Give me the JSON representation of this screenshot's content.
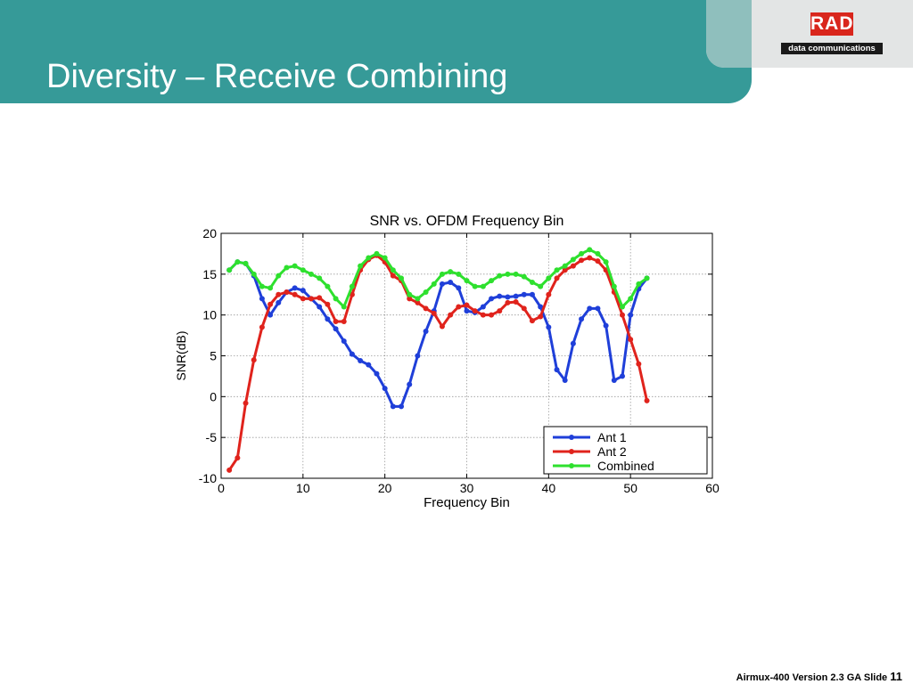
{
  "slide": {
    "title": "Diversity – Receive Combining",
    "footer_text": "Airmux-400 Version 2.3 GA  Slide",
    "footer_page": "11"
  },
  "logo": {
    "mark": "RAD",
    "subtitle": "data communications",
    "mark_color": "#d9261c"
  },
  "colors": {
    "header": "#369a98",
    "ant1": "#1f3fd9",
    "ant2": "#e0231c",
    "combined": "#2ee02e"
  },
  "chart_data": {
    "type": "line",
    "title": "SNR vs. OFDM Frequency Bin",
    "xlabel": "Frequency Bin",
    "ylabel": "SNR(dB)",
    "xlim": [
      0,
      60
    ],
    "ylim": [
      -10,
      20
    ],
    "xticks": [
      0,
      10,
      20,
      30,
      40,
      50,
      60
    ],
    "yticks": [
      -10,
      -5,
      0,
      5,
      10,
      15,
      20
    ],
    "grid": true,
    "legend_position": "bottom-right",
    "x": [
      1,
      2,
      3,
      4,
      5,
      6,
      7,
      8,
      9,
      10,
      11,
      12,
      13,
      14,
      15,
      16,
      17,
      18,
      19,
      20,
      21,
      22,
      23,
      24,
      25,
      26,
      27,
      28,
      29,
      30,
      31,
      32,
      33,
      34,
      35,
      36,
      37,
      38,
      39,
      40,
      41,
      42,
      43,
      44,
      45,
      46,
      47,
      48,
      49,
      50,
      51,
      52
    ],
    "series": [
      {
        "name": "Ant 1",
        "color": "#1f3fd9",
        "values": [
          15.5,
          16.5,
          16.3,
          14.8,
          12.0,
          10.0,
          11.5,
          12.8,
          13.3,
          13.0,
          12.0,
          11.0,
          9.5,
          8.3,
          6.8,
          5.2,
          4.4,
          3.9,
          2.8,
          1.0,
          -1.2,
          -1.2,
          1.5,
          5.0,
          8.0,
          10.5,
          13.8,
          14.0,
          13.3,
          10.5,
          10.3,
          11.0,
          12.0,
          12.3,
          12.2,
          12.3,
          12.5,
          12.5,
          11.0,
          8.5,
          3.3,
          2.0,
          6.5,
          9.5,
          10.8,
          10.8,
          8.7,
          2.0,
          2.5,
          10.0,
          13.2,
          14.5
        ]
      },
      {
        "name": "Ant 2",
        "color": "#e0231c",
        "values": [
          -9.0,
          -7.5,
          -0.8,
          4.5,
          8.5,
          11.3,
          12.5,
          12.8,
          12.5,
          12.0,
          12.0,
          12.1,
          11.3,
          9.2,
          9.2,
          12.5,
          15.5,
          16.8,
          17.3,
          16.5,
          14.8,
          14.2,
          12.0,
          11.5,
          10.8,
          10.2,
          8.6,
          10.0,
          11.0,
          11.2,
          10.5,
          10.0,
          10.0,
          10.5,
          11.5,
          11.6,
          10.8,
          9.3,
          9.8,
          12.5,
          14.5,
          15.5,
          16.0,
          16.7,
          17.0,
          16.6,
          15.5,
          12.8,
          10.0,
          7.0,
          4.0,
          -0.5
        ]
      },
      {
        "name": "Combined",
        "color": "#2ee02e",
        "values": [
          15.5,
          16.5,
          16.3,
          15.0,
          13.5,
          13.3,
          14.8,
          15.8,
          16.0,
          15.5,
          15.0,
          14.5,
          13.5,
          12.0,
          11.0,
          13.5,
          16.0,
          17.0,
          17.5,
          17.0,
          15.5,
          14.5,
          12.5,
          12.0,
          12.8,
          13.8,
          15.0,
          15.3,
          15.0,
          14.2,
          13.5,
          13.5,
          14.2,
          14.8,
          15.0,
          15.0,
          14.7,
          14.0,
          13.5,
          14.5,
          15.5,
          16.0,
          16.8,
          17.5,
          18.0,
          17.5,
          16.5,
          13.5,
          11.0,
          12.0,
          13.8,
          14.5
        ]
      }
    ]
  }
}
